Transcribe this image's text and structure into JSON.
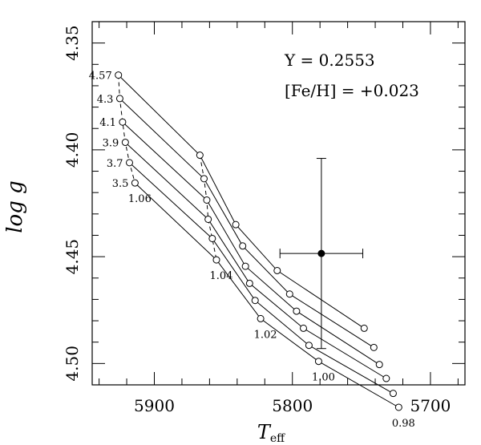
{
  "chart_data": {
    "type": "line",
    "title": "",
    "xlabel_main": "T",
    "xlabel_sub": "eff",
    "ylabel": "log g",
    "xlim": [
      5945,
      5675
    ],
    "ylim": [
      4.51,
      4.34
    ],
    "x_ticks": [
      5900,
      5800,
      5700
    ],
    "x_tick_labels": [
      "5900",
      "5800",
      "5700"
    ],
    "y_ticks": [
      4.35,
      4.4,
      4.45,
      4.5
    ],
    "y_tick_labels": [
      "4.35",
      "4.40",
      "4.45",
      "4.50"
    ],
    "annotations": {
      "helium": "Y = 0.2553",
      "metallicity": "[Fe/H] = +0.023"
    },
    "age_labels": [
      "4.57",
      "4.3",
      "4.1",
      "3.9",
      "3.7",
      "3.5"
    ],
    "mass_labels": [
      "1.06",
      "1.04",
      "1.02",
      "1.00",
      "0.98"
    ],
    "series": [
      {
        "name": "4.57",
        "x": [
          5926,
          5867,
          5841,
          5811,
          5748
        ],
        "y": [
          4.365,
          4.4025,
          4.435,
          4.4565,
          4.4835
        ]
      },
      {
        "name": "4.3",
        "x": [
          5925,
          5864,
          5836,
          5802,
          5741
        ],
        "y": [
          4.376,
          4.4135,
          4.445,
          4.4675,
          4.4925
        ]
      },
      {
        "name": "4.1",
        "x": [
          5923,
          5862,
          5834,
          5797,
          5737
        ],
        "y": [
          4.387,
          4.4235,
          4.4545,
          4.4755,
          4.5005
        ]
      },
      {
        "name": "3.9",
        "x": [
          5921,
          5861,
          5831,
          5792,
          5732
        ],
        "y": [
          4.3965,
          4.4325,
          4.4625,
          4.4835,
          4.507
        ]
      },
      {
        "name": "3.7",
        "x": [
          5918,
          5858,
          5827,
          5788,
          5727
        ],
        "y": [
          4.406,
          4.4415,
          4.4705,
          4.4915,
          4.514
        ]
      },
      {
        "name": "3.5",
        "x": [
          5914,
          5855,
          5823,
          5781,
          5723
        ],
        "y": [
          4.4155,
          4.4515,
          4.479,
          4.499,
          4.5205
        ]
      }
    ],
    "isochrone_columns": [
      0,
      1
    ],
    "observed": {
      "x": 5779,
      "y": 4.4485,
      "x_err": 30,
      "y_err": 0.0445
    }
  }
}
